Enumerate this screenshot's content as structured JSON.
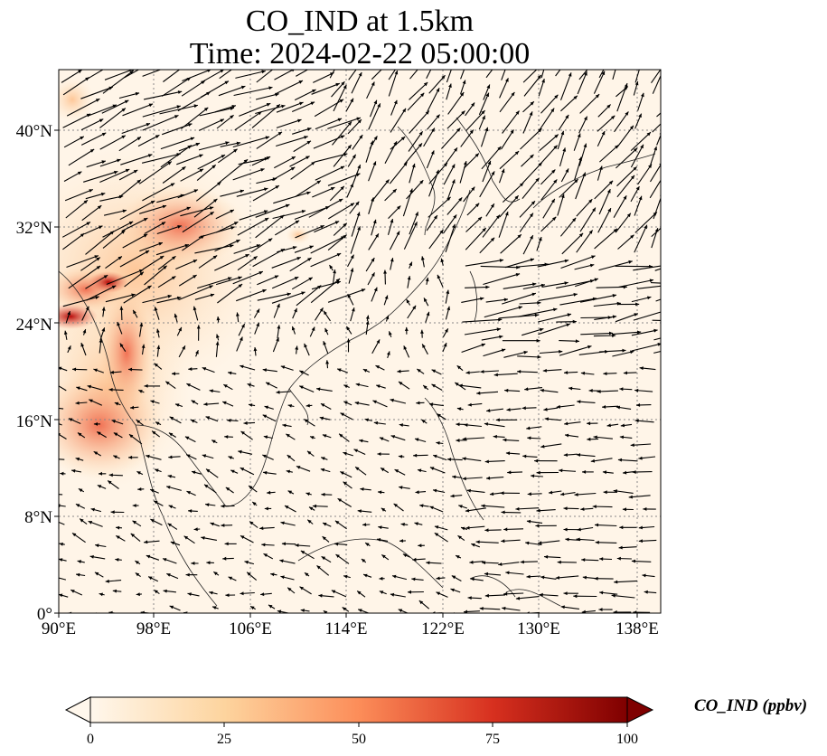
{
  "title": {
    "line1": "CO_IND at 1.5km",
    "line2": "Time: 2024-02-22 05:00:00"
  },
  "axes": {
    "lon_ticks": [
      "90°E",
      "98°E",
      "106°E",
      "114°E",
      "122°E",
      "130°E",
      "138°E"
    ],
    "lat_ticks": [
      "0°",
      "8°N",
      "16°N",
      "24°N",
      "32°N",
      "40°N"
    ]
  },
  "colorbar": {
    "label": "CO_IND (ppbv)",
    "ticks": [
      "0",
      "25",
      "50",
      "75",
      "100"
    ],
    "min": 0,
    "max": 100,
    "extend": "both",
    "colormap": [
      "#fff7ec",
      "#fdd49e",
      "#fc8d59",
      "#d7301f",
      "#7f0000"
    ]
  },
  "map": {
    "extent_lon": [
      90,
      140
    ],
    "extent_lat": [
      0,
      45
    ],
    "background": "#fff5e8",
    "vector_color": "#000000",
    "gridlines": "dotted"
  }
}
